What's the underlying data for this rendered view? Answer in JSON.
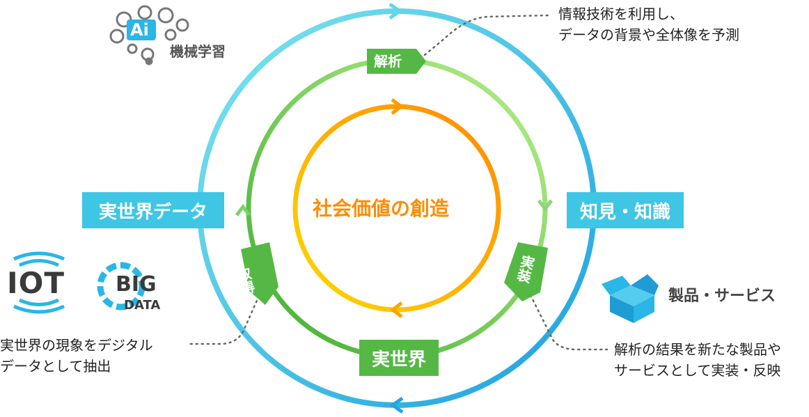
{
  "center": {
    "label": "社会価値の創造"
  },
  "outer_boxes": {
    "left": "実世界データ",
    "right": "知見・知識"
  },
  "tags": {
    "top": "解析",
    "left": "取得",
    "right": "実装",
    "bottom": "実世界"
  },
  "annotations": {
    "top_right_line1": "情報技術を利用し、",
    "top_right_line2": "データの背景や全体像を予測",
    "bottom_left_line1": "実世界の現象をデジタル",
    "bottom_left_line2": "データとして抽出",
    "bottom_right_line1": "解析の結果を新たな製品や",
    "bottom_right_line2": "サービスとして実装・反映"
  },
  "icons": {
    "ai": {
      "badge": "Ai",
      "label": "機械学習"
    },
    "iot": {
      "text": "IOT"
    },
    "bigdata": {
      "big": "BIG",
      "data": "DATA"
    },
    "product": {
      "label": "製品・サービス"
    }
  },
  "colors": {
    "outer_ring": "#3ec6e4",
    "middle_ring": "#7dd06a",
    "inner_ring": "#ff9a00",
    "tag_green": "#55b844",
    "center_text": "#ff8c00"
  }
}
